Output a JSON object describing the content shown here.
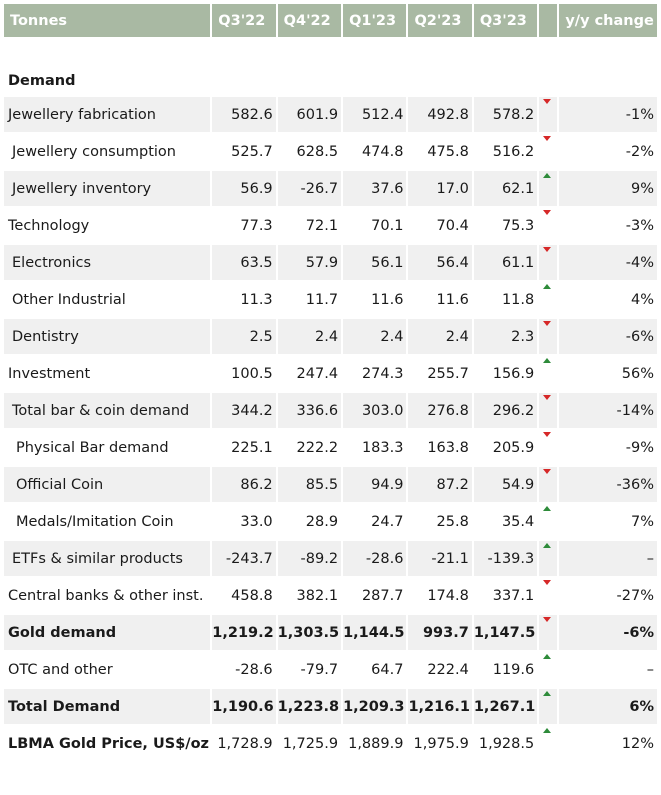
{
  "header": {
    "label": "Tonnes",
    "quarters": [
      "Q3'22",
      "Q4'22",
      "Q1'23",
      "Q2'23",
      "Q3'23"
    ],
    "change": "y/y change"
  },
  "section": "Demand",
  "rows": [
    {
      "label": "Jewellery fabrication",
      "indent": 0,
      "values": [
        "582.6",
        "601.9",
        "512.4",
        "492.8",
        "578.2"
      ],
      "direction": "down",
      "change": "-1%",
      "bold": false
    },
    {
      "label": "Jewellery consumption",
      "indent": 1,
      "values": [
        "525.7",
        "628.5",
        "474.8",
        "475.8",
        "516.2"
      ],
      "direction": "down",
      "change": "-2%",
      "bold": false
    },
    {
      "label": "Jewellery inventory",
      "indent": 1,
      "values": [
        "56.9",
        "-26.7",
        "37.6",
        "17.0",
        "62.1"
      ],
      "direction": "up",
      "change": "9%",
      "bold": false
    },
    {
      "label": "Technology",
      "indent": 0,
      "values": [
        "77.3",
        "72.1",
        "70.1",
        "70.4",
        "75.3"
      ],
      "direction": "down",
      "change": "-3%",
      "bold": false
    },
    {
      "label": "Electronics",
      "indent": 1,
      "values": [
        "63.5",
        "57.9",
        "56.1",
        "56.4",
        "61.1"
      ],
      "direction": "down",
      "change": "-4%",
      "bold": false
    },
    {
      "label": "Other Industrial",
      "indent": 1,
      "values": [
        "11.3",
        "11.7",
        "11.6",
        "11.6",
        "11.8"
      ],
      "direction": "up",
      "change": "4%",
      "bold": false
    },
    {
      "label": "Dentistry",
      "indent": 1,
      "values": [
        "2.5",
        "2.4",
        "2.4",
        "2.4",
        "2.3"
      ],
      "direction": "down",
      "change": "-6%",
      "bold": false
    },
    {
      "label": "Investment",
      "indent": 0,
      "values": [
        "100.5",
        "247.4",
        "274.3",
        "255.7",
        "156.9"
      ],
      "direction": "up",
      "change": "56%",
      "bold": false
    },
    {
      "label": "Total bar & coin demand",
      "indent": 1,
      "values": [
        "344.2",
        "336.6",
        "303.0",
        "276.8",
        "296.2"
      ],
      "direction": "down",
      "change": "-14%",
      "bold": false
    },
    {
      "label": "Physical Bar demand",
      "indent": 2,
      "values": [
        "225.1",
        "222.2",
        "183.3",
        "163.8",
        "205.9"
      ],
      "direction": "down",
      "change": "-9%",
      "bold": false
    },
    {
      "label": "Official Coin",
      "indent": 2,
      "values": [
        "86.2",
        "85.5",
        "94.9",
        "87.2",
        "54.9"
      ],
      "direction": "down",
      "change": "-36%",
      "bold": false
    },
    {
      "label": "Medals/Imitation Coin",
      "indent": 2,
      "values": [
        "33.0",
        "28.9",
        "24.7",
        "25.8",
        "35.4"
      ],
      "direction": "up",
      "change": "7%",
      "bold": false
    },
    {
      "label": "ETFs & similar products",
      "indent": 1,
      "values": [
        "-243.7",
        "-89.2",
        "-28.6",
        "-21.1",
        "-139.3"
      ],
      "direction": "up",
      "change": "–",
      "bold": false
    },
    {
      "label": "Central banks & other inst.",
      "indent": 0,
      "values": [
        "458.8",
        "382.1",
        "287.7",
        "174.8",
        "337.1"
      ],
      "direction": "down",
      "change": "-27%",
      "bold": false
    },
    {
      "label": "Gold demand",
      "indent": 0,
      "values": [
        "1,219.2",
        "1,303.5",
        "1,144.5",
        "993.7",
        "1,147.5"
      ],
      "direction": "down",
      "change": "-6%",
      "bold": true
    },
    {
      "label": "OTC and other",
      "indent": 0,
      "values": [
        "-28.6",
        "-79.7",
        "64.7",
        "222.4",
        "119.6"
      ],
      "direction": "up",
      "change": "–",
      "bold": false
    },
    {
      "label": "Total Demand",
      "indent": 0,
      "values": [
        "1,190.6",
        "1,223.8",
        "1,209.3",
        "1,216.1",
        "1,267.1"
      ],
      "direction": "up",
      "change": "6%",
      "bold": true
    },
    {
      "label": "LBMA Gold Price, US$/oz",
      "indent": 0,
      "values": [
        "1,728.9",
        "1,725.9",
        "1,889.9",
        "1,975.9",
        "1,928.5"
      ],
      "direction": "up",
      "change": "12%",
      "bold": true,
      "bold_label_only": true
    }
  ],
  "colors": {
    "header_bg": "#a9b9a3",
    "up": "#2e8b3a",
    "down": "#d62828",
    "alt_row": "#f0f0f0"
  }
}
